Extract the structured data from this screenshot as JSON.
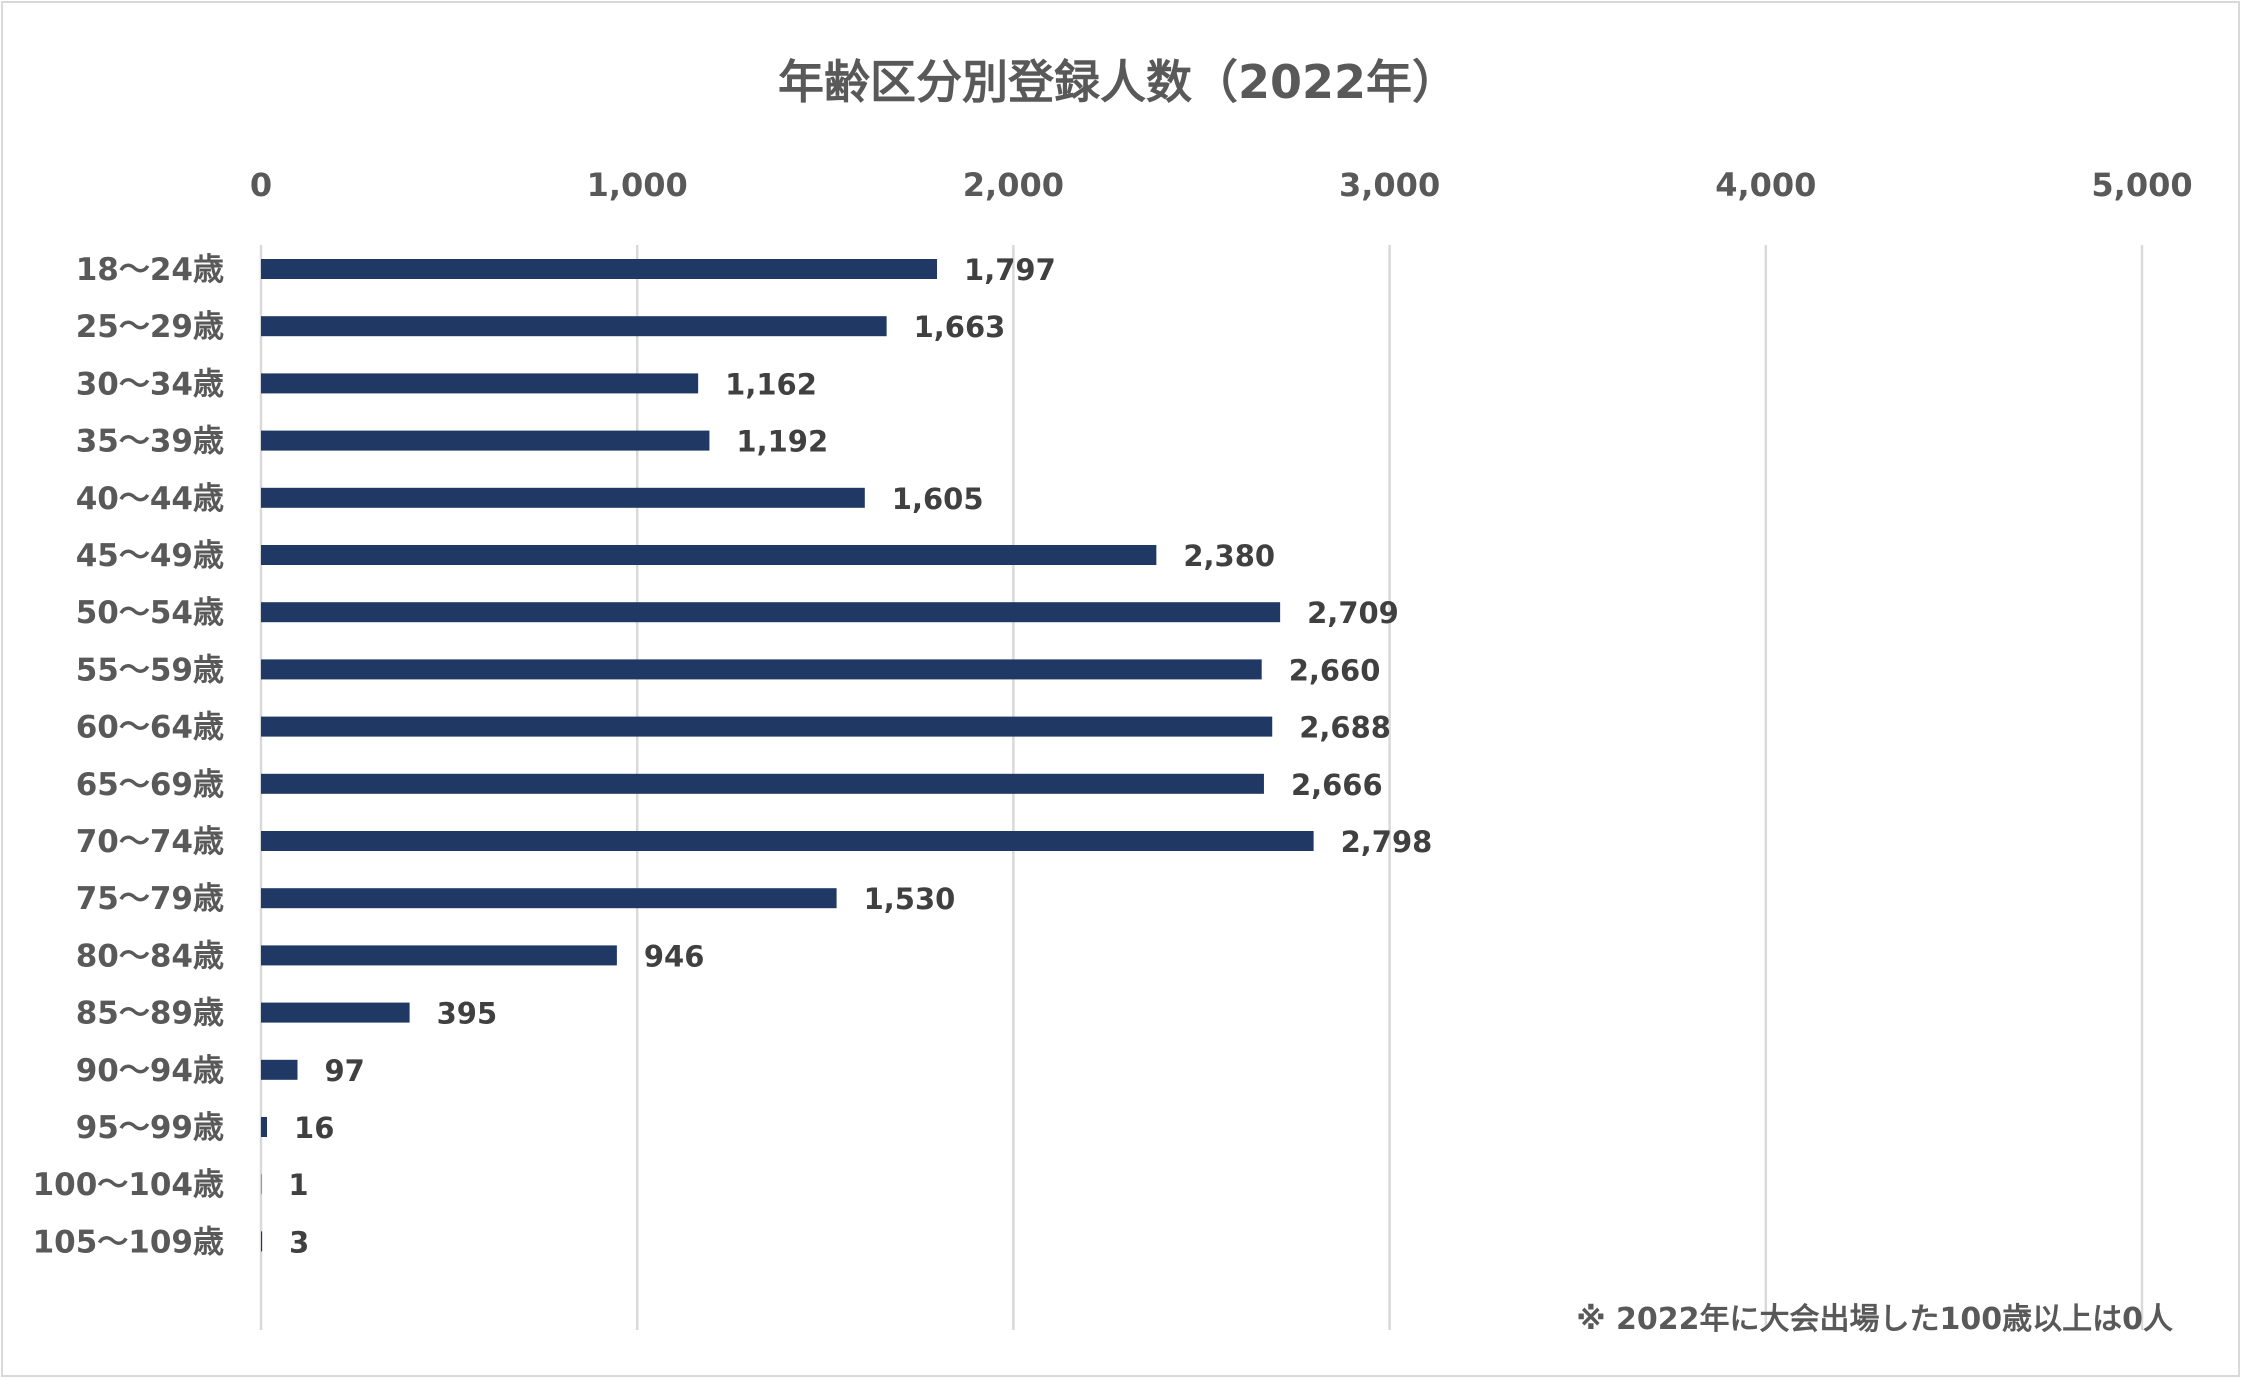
{
  "colors": {
    "bar": "#1f3864",
    "grid": "#d9d9d9",
    "text": "#595959"
  },
  "footnote": "※ 2022年に大会出場した100歳以上は0人",
  "chart_data": {
    "type": "bar",
    "orientation": "horizontal",
    "title": "年齢区分別登録人数（2022年）",
    "xlabel": "",
    "ylabel": "",
    "xlim": [
      0,
      5000
    ],
    "x_ticks": [
      0,
      1000,
      2000,
      3000,
      4000,
      5000
    ],
    "x_tick_labels": [
      "0",
      "1,000",
      "2,000",
      "3,000",
      "4,000",
      "5,000"
    ],
    "x_axis_position": "top",
    "grid": "vertical",
    "categories": [
      "18〜24歳",
      "25〜29歳",
      "30〜34歳",
      "35〜39歳",
      "40〜44歳",
      "45〜49歳",
      "50〜54歳",
      "55〜59歳",
      "60〜64歳",
      "65〜69歳",
      "70〜74歳",
      "75〜79歳",
      "80〜84歳",
      "85〜89歳",
      "90〜94歳",
      "95〜99歳",
      "100〜104歳",
      "105〜109歳"
    ],
    "values": [
      1797,
      1663,
      1162,
      1192,
      1605,
      2380,
      2709,
      2660,
      2688,
      2666,
      2798,
      1530,
      946,
      395,
      97,
      16,
      1,
      3
    ],
    "value_labels": [
      "1,797",
      "1,663",
      "1,162",
      "1,192",
      "1,605",
      "2,380",
      "2,709",
      "2,660",
      "2,688",
      "2,666",
      "2,798",
      "1,530",
      "946",
      "395",
      "97",
      "16",
      "1",
      "3"
    ]
  }
}
